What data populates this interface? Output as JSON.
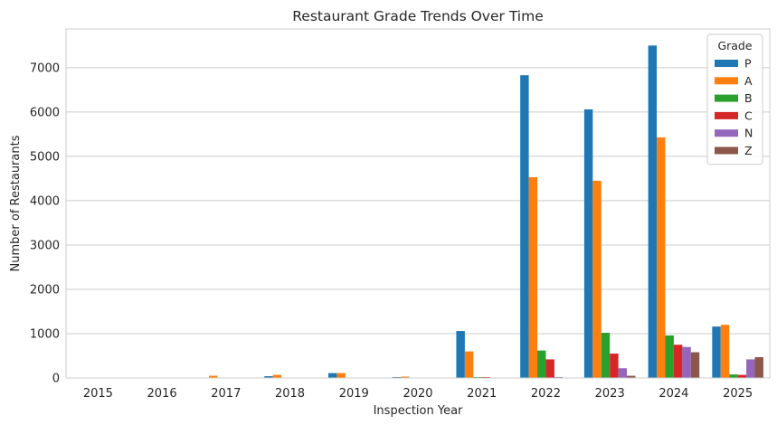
{
  "chart_data": {
    "type": "bar",
    "title": "Restaurant Grade Trends Over Time",
    "xlabel": "Inspection Year",
    "ylabel": "Number of Restaurants",
    "categories": [
      "2015",
      "2016",
      "2017",
      "2018",
      "2019",
      "2020",
      "2021",
      "2022",
      "2023",
      "2024",
      "2025"
    ],
    "ylim": [
      0,
      7875
    ],
    "yticks": [
      0,
      1000,
      2000,
      3000,
      4000,
      5000,
      6000,
      7000
    ],
    "grid": true,
    "legend": {
      "title": "Grade",
      "placement": "top-right"
    },
    "series": [
      {
        "name": "P",
        "color": "#1f77b4",
        "values": [
          0,
          0,
          0,
          40,
          110,
          20,
          1060,
          6830,
          6060,
          7500,
          1160
        ]
      },
      {
        "name": "A",
        "color": "#ff7f0e",
        "values": [
          0,
          0,
          50,
          70,
          110,
          30,
          600,
          4530,
          4450,
          5430,
          1200
        ]
      },
      {
        "name": "B",
        "color": "#2ca02c",
        "values": [
          0,
          0,
          0,
          0,
          0,
          0,
          20,
          620,
          1020,
          960,
          80
        ]
      },
      {
        "name": "C",
        "color": "#d62728",
        "values": [
          0,
          0,
          0,
          0,
          0,
          0,
          20,
          420,
          550,
          750,
          70
        ]
      },
      {
        "name": "N",
        "color": "#9467bd",
        "values": [
          0,
          0,
          0,
          0,
          0,
          0,
          0,
          20,
          220,
          700,
          420
        ]
      },
      {
        "name": "Z",
        "color": "#8c564b",
        "values": [
          0,
          0,
          0,
          0,
          0,
          0,
          0,
          0,
          50,
          580,
          470
        ]
      }
    ]
  }
}
